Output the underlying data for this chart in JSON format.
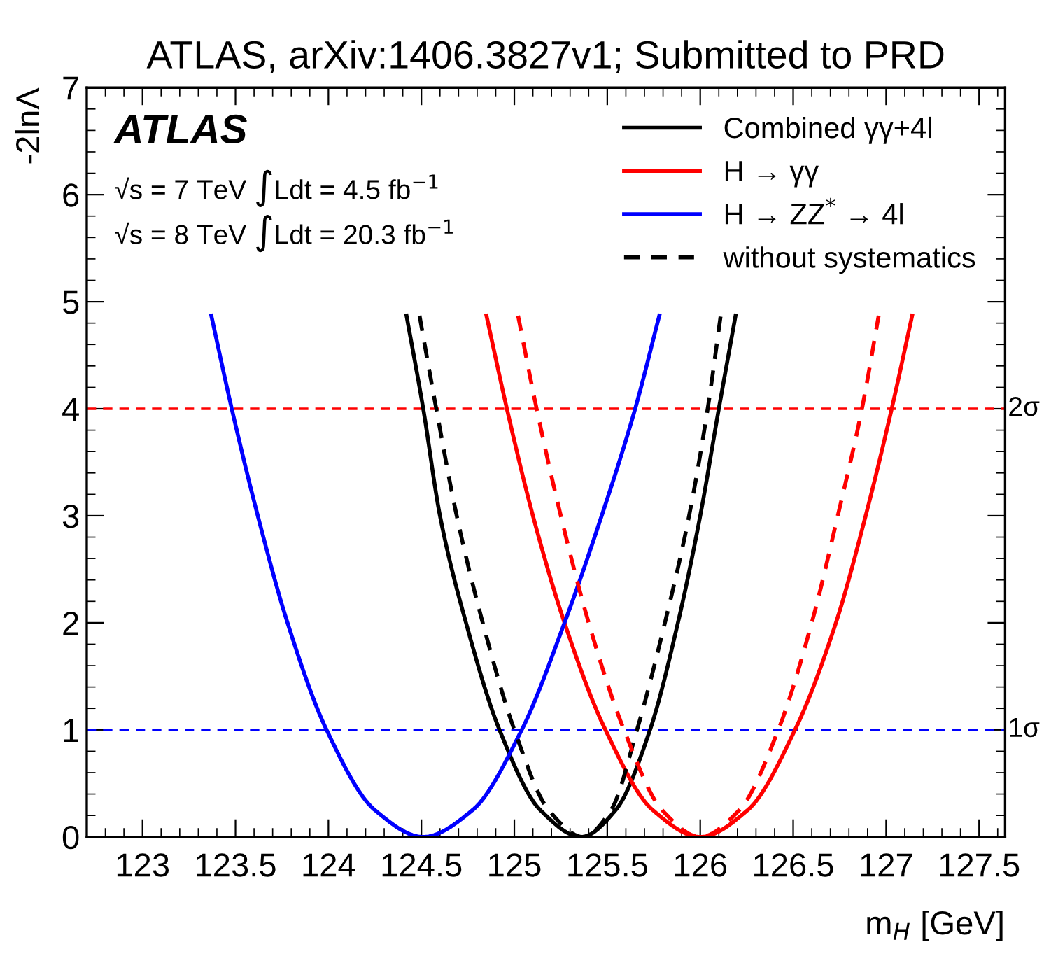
{
  "chart_data": {
    "type": "line",
    "title": "ATLAS, arXiv:1406.3827v1; Submitted to PRD",
    "xlabel": "m$_{H}$ [GeV]",
    "ylabel": "-2lnΛ",
    "xlim": [
      122.7,
      127.64
    ],
    "ylim": [
      0,
      7
    ],
    "xticks": [
      123,
      123.5,
      124,
      124.5,
      125,
      125.5,
      126,
      126.5,
      127,
      127.5
    ],
    "yticks": [
      0,
      1,
      2,
      3,
      4,
      5,
      6,
      7
    ],
    "grid": false,
    "legend": "top right",
    "marker": "none",
    "annotations": [
      "ATLAS",
      "√s = 7 TeV ∫Ldt = 4.5 fb$^{−1}$",
      "√s = 8 TeV ∫Ldt = 20.3 fb$^{−1}$"
    ],
    "ref_lines": [
      {
        "axis": "y",
        "value": 4,
        "label": "2σ",
        "color": "#ff0000",
        "line_style": "dashed"
      },
      {
        "axis": "y",
        "value": 1,
        "label": "1σ",
        "color": "#0000ff",
        "line_style": "dashed"
      }
    ],
    "series": [
      {
        "name": "Combined γγ+4l",
        "color": "#000000",
        "line_style": "solid",
        "x": [
          124.42,
          124.51,
          124.6,
          124.74,
          124.92,
          125.14,
          125.36,
          125.545,
          125.73,
          125.88,
          126.0,
          126.1,
          126.19
        ],
        "values": [
          4.87,
          4,
          3,
          2,
          1,
          0.25,
          0,
          0.25,
          1,
          2,
          3,
          4,
          4.87
        ]
      },
      {
        "name": "H → γγ",
        "color": "#ff0000",
        "line_style": "solid",
        "x": [
          124.85,
          124.96,
          125.1,
          125.27,
          125.49,
          125.745,
          126.0,
          126.255,
          126.51,
          126.73,
          126.89,
          127.03,
          127.14
        ],
        "values": [
          4.87,
          4,
          3,
          2,
          1,
          0.25,
          0,
          0.25,
          1,
          2,
          3,
          4,
          4.87
        ]
      },
      {
        "name": "H → ZZ$^{*}$ → 4l",
        "color": "#0000ff",
        "line_style": "solid",
        "x": [
          123.37,
          123.48,
          123.62,
          123.78,
          123.99,
          124.25,
          124.51,
          124.775,
          125.04,
          125.27,
          125.47,
          125.65,
          125.78
        ],
        "values": [
          4.87,
          4,
          3,
          2,
          1,
          0.25,
          0,
          0.25,
          1,
          2,
          3,
          4,
          4.87
        ]
      },
      {
        "name": "without systematics",
        "color": "#000000",
        "line_style": "dashed",
        "x": [
          124.49,
          124.58,
          124.69,
          124.83,
          125.0,
          125.185,
          125.37,
          125.52,
          125.66,
          125.81,
          125.94,
          126.04,
          126.11
        ],
        "values": [
          4.87,
          4,
          3,
          2,
          1,
          0.25,
          0,
          0.25,
          1,
          2,
          3,
          4,
          4.87
        ]
      },
      {
        "color": "#ff0000",
        "line_style": "dashed",
        "x": [
          125.02,
          125.12,
          125.25,
          125.4,
          125.59,
          125.795,
          126.0,
          126.21,
          126.42,
          126.6,
          126.74,
          126.87,
          126.96
        ],
        "values": [
          4.87,
          4,
          3,
          2,
          1,
          0.25,
          0,
          0.25,
          1,
          2,
          3,
          4,
          4.87
        ]
      }
    ]
  }
}
